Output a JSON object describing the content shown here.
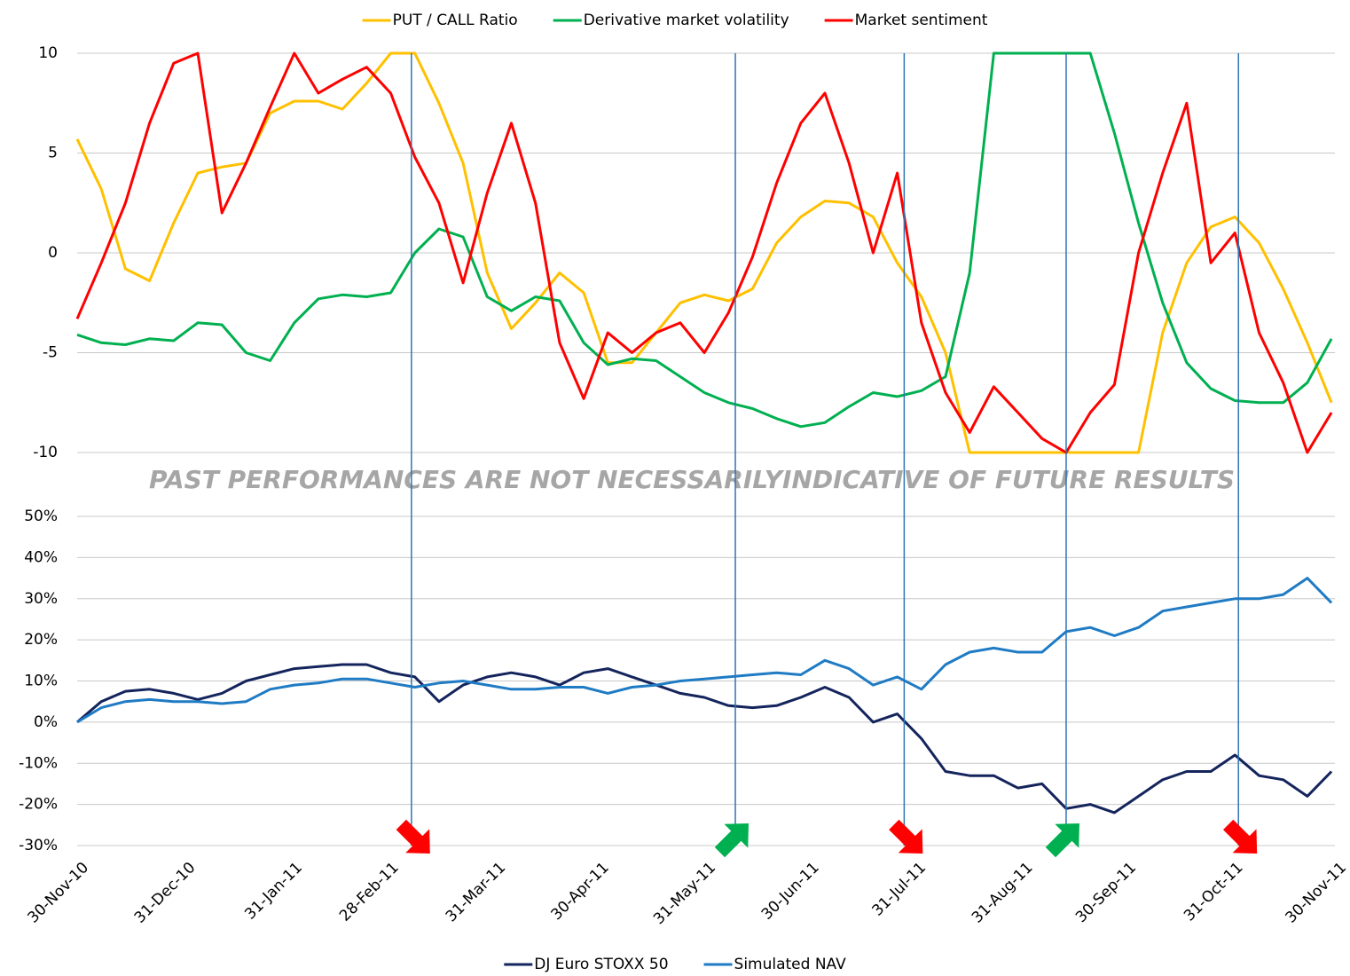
{
  "chart_data": [
    {
      "type": "line",
      "x": [
        "30-Nov-10",
        "07-Dec-10",
        "14-Dec-10",
        "21-Dec-10",
        "28-Dec-10",
        "04-Jan-11",
        "11-Jan-11",
        "18-Jan-11",
        "25-Jan-11",
        "01-Feb-11",
        "08-Feb-11",
        "15-Feb-11",
        "22-Feb-11",
        "01-Mar-11",
        "08-Mar-11",
        "15-Mar-11",
        "22-Mar-11",
        "29-Mar-11",
        "05-Apr-11",
        "12-Apr-11",
        "19-Apr-11",
        "26-Apr-11",
        "03-May-11",
        "10-May-11",
        "17-May-11",
        "24-May-11",
        "31-May-11",
        "07-Jun-11",
        "14-Jun-11",
        "21-Jun-11",
        "28-Jun-11",
        "05-Jul-11",
        "12-Jul-11",
        "19-Jul-11",
        "26-Jul-11",
        "02-Aug-11",
        "09-Aug-11",
        "16-Aug-11",
        "23-Aug-11",
        "30-Aug-11",
        "06-Sep-11",
        "13-Sep-11",
        "20-Sep-11",
        "27-Sep-11",
        "04-Oct-11",
        "11-Oct-11",
        "18-Oct-11",
        "25-Oct-11",
        "01-Nov-11",
        "08-Nov-11",
        "15-Nov-11",
        "22-Nov-11",
        "29-Nov-11"
      ],
      "xlim": [
        "30-Nov-10",
        "30-Nov-11"
      ],
      "ylim": [
        -10,
        10
      ],
      "yticks": [
        -10,
        -5,
        0,
        5,
        10
      ],
      "grid": true,
      "legend": "top",
      "series": [
        {
          "name": "PUT / CALL Ratio",
          "color": "#ffc000",
          "values": [
            5.7,
            3.2,
            -0.8,
            -1.4,
            1.5,
            4.0,
            4.3,
            4.5,
            7.0,
            7.6,
            7.6,
            7.2,
            8.5,
            10,
            10,
            7.5,
            4.5,
            -1.0,
            -3.8,
            -2.5,
            -1.0,
            -2.0,
            -5.5,
            -5.5,
            -4.0,
            -2.5,
            -2.1,
            -2.4,
            -1.8,
            0.5,
            1.8,
            2.6,
            2.5,
            1.8,
            -0.5,
            -2.2,
            -5.0,
            -10,
            -10,
            -10,
            -10,
            -10,
            -10,
            -10,
            -10,
            -4.0,
            -0.5,
            1.3,
            1.8,
            0.5,
            -1.8,
            -4.5,
            -7.5
          ]
        },
        {
          "name": "Derivative market volatility",
          "color": "#00b050",
          "values": [
            -4.1,
            -4.5,
            -4.6,
            -4.3,
            -4.4,
            -3.5,
            -3.6,
            -5.0,
            -5.4,
            -3.5,
            -2.3,
            -2.1,
            -2.2,
            -2.0,
            0.0,
            1.2,
            0.8,
            -2.2,
            -2.9,
            -2.2,
            -2.4,
            -4.5,
            -5.6,
            -5.3,
            -5.4,
            -6.2,
            -7.0,
            -7.5,
            -7.8,
            -8.3,
            -8.7,
            -8.5,
            -7.7,
            -7.0,
            -7.2,
            -6.9,
            -6.2,
            -1.0,
            10,
            10,
            10,
            10,
            10,
            6.0,
            1.5,
            -2.5,
            -5.5,
            -6.8,
            -7.4,
            -7.5,
            -7.5,
            -6.5,
            -4.3
          ]
        },
        {
          "name": "Market  sentiment",
          "color": "#ff0000",
          "values": [
            -3.3,
            -0.5,
            2.5,
            6.5,
            9.5,
            10,
            2.0,
            4.5,
            7.3,
            10,
            8.0,
            8.7,
            9.3,
            8.0,
            4.8,
            2.5,
            -1.5,
            3.0,
            6.5,
            2.5,
            -4.5,
            -7.3,
            -4.0,
            -5.0,
            -4.0,
            -3.5,
            -5.0,
            -3.0,
            -0.2,
            3.5,
            6.5,
            8.0,
            4.5,
            0,
            4.0,
            -3.5,
            -7.0,
            -9.0,
            -6.7,
            -8.0,
            -9.3,
            -10,
            -8.0,
            -6.6,
            0.0,
            4.0,
            7.5,
            -0.5,
            1.0,
            -4.0,
            -6.5,
            -10,
            -8.0
          ]
        }
      ],
      "annotation": "PAST PERFORMANCES ARE NOT NECESSARILYINDICATIVE OF FUTURE RESULTS"
    },
    {
      "type": "line",
      "x": [
        "30-Nov-10",
        "07-Dec-10",
        "14-Dec-10",
        "21-Dec-10",
        "28-Dec-10",
        "04-Jan-11",
        "11-Jan-11",
        "18-Jan-11",
        "25-Jan-11",
        "01-Feb-11",
        "08-Feb-11",
        "15-Feb-11",
        "22-Feb-11",
        "01-Mar-11",
        "08-Mar-11",
        "15-Mar-11",
        "22-Mar-11",
        "29-Mar-11",
        "05-Apr-11",
        "12-Apr-11",
        "19-Apr-11",
        "26-Apr-11",
        "03-May-11",
        "10-May-11",
        "17-May-11",
        "24-May-11",
        "31-May-11",
        "07-Jun-11",
        "14-Jun-11",
        "21-Jun-11",
        "28-Jun-11",
        "05-Jul-11",
        "12-Jul-11",
        "19-Jul-11",
        "26-Jul-11",
        "02-Aug-11",
        "09-Aug-11",
        "16-Aug-11",
        "23-Aug-11",
        "30-Aug-11",
        "06-Sep-11",
        "13-Sep-11",
        "20-Sep-11",
        "27-Sep-11",
        "04-Oct-11",
        "11-Oct-11",
        "18-Oct-11",
        "25-Oct-11",
        "01-Nov-11",
        "08-Nov-11",
        "15-Nov-11",
        "22-Nov-11",
        "29-Nov-11"
      ],
      "xlim": [
        "30-Nov-10",
        "30-Nov-11"
      ],
      "xticks": [
        "30-Nov-10",
        "31-Dec-10",
        "31-Jan-11",
        "28-Feb-11",
        "31-Mar-11",
        "30-Apr-11",
        "31-May-11",
        "30-Jun-11",
        "31-Jul-11",
        "31-Aug-11",
        "30-Sep-11",
        "31-Oct-11",
        "30-Nov-11"
      ],
      "ylim": [
        -30,
        50
      ],
      "yticks": [
        {
          "value": -30,
          "label": "-30%"
        },
        {
          "value": -20,
          "label": "-20%"
        },
        {
          "value": -10,
          "label": "-10%"
        },
        {
          "value": 0,
          "label": "0%"
        },
        {
          "value": 10,
          "label": "10%"
        },
        {
          "value": 20,
          "label": "20%"
        },
        {
          "value": 30,
          "label": "30%"
        },
        {
          "value": 40,
          "label": "40%"
        },
        {
          "value": 50,
          "label": "50%"
        }
      ],
      "grid": true,
      "legend": "bottom",
      "series": [
        {
          "name": "DJ Euro STOXX 50",
          "color": "#14245c",
          "values": [
            0,
            5,
            7.5,
            8,
            7,
            5.5,
            7,
            10,
            11.5,
            13,
            13.5,
            14,
            14,
            12,
            11,
            5,
            9,
            11,
            12,
            11,
            9,
            12,
            13,
            11,
            9,
            7,
            6,
            4,
            3.5,
            4,
            6,
            8.5,
            6,
            0,
            2,
            -4,
            -12,
            -13,
            -13,
            -16,
            -15,
            -21,
            -20,
            -22,
            -18,
            -14,
            -12,
            -12,
            -8,
            -13,
            -14,
            -18,
            -12
          ]
        },
        {
          "name": "Simulated NAV",
          "color": "#1f7bc4",
          "values": [
            0,
            3.5,
            5,
            5.5,
            5,
            5,
            4.5,
            5,
            8,
            9,
            9.5,
            10.5,
            10.5,
            9.5,
            8.5,
            9.5,
            10,
            9,
            8,
            8,
            8.5,
            8.5,
            7,
            8.5,
            9,
            10,
            10.5,
            11,
            11.5,
            12,
            11.5,
            15,
            13,
            9,
            11,
            8,
            14,
            17,
            18,
            17,
            17,
            22,
            23,
            21,
            23,
            27,
            28,
            29,
            30,
            30,
            31,
            35,
            29
          ]
        }
      ],
      "signals": [
        {
          "x": "07-Mar-11",
          "direction": "down",
          "color": "#ff0000"
        },
        {
          "x": "09-Jun-11",
          "direction": "up",
          "color": "#00b050"
        },
        {
          "x": "28-Jul-11",
          "direction": "down",
          "color": "#ff0000"
        },
        {
          "x": "13-Sep-11",
          "direction": "up",
          "color": "#00b050"
        },
        {
          "x": "02-Nov-11",
          "direction": "down",
          "color": "#ff0000"
        }
      ]
    }
  ]
}
